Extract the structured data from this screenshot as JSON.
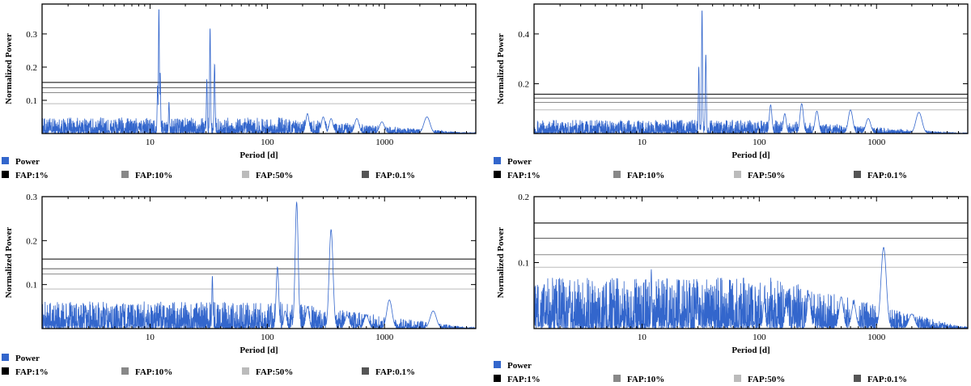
{
  "colors": {
    "power": "#3366cc",
    "fap_1": "#000000",
    "fap_10": "#888888",
    "fap_50": "#bbbbbb",
    "fap_01": "#555555"
  },
  "chart_data": [
    {
      "type": "line",
      "title": "",
      "xlabel": "Period [d]",
      "ylabel": "Normalized Power",
      "xscale": "log",
      "xlim": [
        1.2,
        6000
      ],
      "ylim": [
        0,
        0.39
      ],
      "xticks": [
        10,
        100,
        1000
      ],
      "xtick_labels": [
        "10",
        "100",
        "1000"
      ],
      "yticks": [
        0.1,
        0.2,
        0.3
      ],
      "ytick_labels": [
        "0.1",
        "0.2",
        "0.3"
      ],
      "fap_levels": {
        "fap_1": 0.154,
        "fap_10": 0.123,
        "fap_50": 0.09,
        "fap_01": 0.138
      },
      "noise_level": 0.022,
      "peaks": [
        {
          "x": 11.6,
          "y": 0.145
        },
        {
          "x": 11.9,
          "y": 0.38
        },
        {
          "x": 12.2,
          "y": 0.185
        },
        {
          "x": 14.5,
          "y": 0.095
        },
        {
          "x": 30.5,
          "y": 0.165
        },
        {
          "x": 32.5,
          "y": 0.32
        },
        {
          "x": 35.5,
          "y": 0.21
        },
        {
          "x": 220,
          "y": 0.06
        },
        {
          "x": 300,
          "y": 0.05
        },
        {
          "x": 350,
          "y": 0.045
        },
        {
          "x": 580,
          "y": 0.045
        },
        {
          "x": 950,
          "y": 0.035
        },
        {
          "x": 2300,
          "y": 0.05
        }
      ],
      "legend": [
        "Power",
        "FAP:1%",
        "FAP:10%",
        "FAP:50%",
        "FAP:0.1%"
      ]
    },
    {
      "type": "line",
      "title": "",
      "xlabel": "Period [d]",
      "ylabel": "Normalized Power",
      "xscale": "log",
      "xlim": [
        1.2,
        6000
      ],
      "ylim": [
        0,
        0.52
      ],
      "xticks": [
        10,
        100,
        1000
      ],
      "xtick_labels": [
        "10",
        "100",
        "1000"
      ],
      "yticks": [
        0.2,
        0.4
      ],
      "ytick_labels": [
        "0.2",
        "0.4"
      ],
      "fap_levels": {
        "fap_1": 0.158,
        "fap_10": 0.125,
        "fap_50": 0.095,
        "fap_01": 0.142
      },
      "noise_level": 0.025,
      "peaks": [
        {
          "x": 30.5,
          "y": 0.27
        },
        {
          "x": 32.5,
          "y": 0.5
        },
        {
          "x": 35,
          "y": 0.32
        },
        {
          "x": 125,
          "y": 0.115
        },
        {
          "x": 165,
          "y": 0.08
        },
        {
          "x": 230,
          "y": 0.12
        },
        {
          "x": 310,
          "y": 0.09
        },
        {
          "x": 600,
          "y": 0.095
        },
        {
          "x": 850,
          "y": 0.06
        },
        {
          "x": 2300,
          "y": 0.085
        }
      ],
      "legend": [
        "Power",
        "FAP:1%",
        "FAP:10%",
        "FAP:50%",
        "FAP:0.1%"
      ]
    },
    {
      "type": "line",
      "title": "",
      "xlabel": "Period [d]",
      "ylabel": "Normalized Power",
      "xscale": "log",
      "xlim": [
        1.2,
        6000
      ],
      "ylim": [
        0,
        0.3
      ],
      "xticks": [
        10,
        100,
        1000
      ],
      "xtick_labels": [
        "10",
        "100",
        "1000"
      ],
      "yticks": [
        0.1,
        0.2,
        0.3
      ],
      "ytick_labels": [
        "0.1",
        "0.2",
        "0.3"
      ],
      "fap_levels": {
        "fap_1": 0.158,
        "fap_10": 0.124,
        "fap_50": 0.09,
        "fap_01": 0.136
      },
      "noise_level": 0.028,
      "peaks": [
        {
          "x": 34,
          "y": 0.12
        },
        {
          "x": 122,
          "y": 0.14
        },
        {
          "x": 142,
          "y": 0.04
        },
        {
          "x": 178,
          "y": 0.287
        },
        {
          "x": 220,
          "y": 0.05
        },
        {
          "x": 350,
          "y": 0.225
        },
        {
          "x": 480,
          "y": 0.03
        },
        {
          "x": 700,
          "y": 0.03
        },
        {
          "x": 1100,
          "y": 0.065
        },
        {
          "x": 2600,
          "y": 0.04
        }
      ],
      "legend": [
        "Power",
        "FAP:1%",
        "FAP:10%",
        "FAP:50%",
        "FAP:0.1%"
      ]
    },
    {
      "type": "line",
      "title": "",
      "xlabel": "Period [d]",
      "ylabel": "Normalized Power",
      "xscale": "log",
      "xlim": [
        1.2,
        6000
      ],
      "ylim": [
        0,
        0.2
      ],
      "xticks": [
        10,
        100,
        1000
      ],
      "xtick_labels": [
        "10",
        "100",
        "1000"
      ],
      "yticks": [
        0.1,
        0.2
      ],
      "ytick_labels": [
        "0.1",
        "0.2"
      ],
      "fap_levels": {
        "fap_1": 0.16,
        "fap_10": 0.112,
        "fap_50": 0.093,
        "fap_01": 0.137
      },
      "noise_level": 0.035,
      "peaks": [
        {
          "x": 12,
          "y": 0.09
        },
        {
          "x": 110,
          "y": 0.04
        },
        {
          "x": 170,
          "y": 0.035
        },
        {
          "x": 265,
          "y": 0.052
        },
        {
          "x": 500,
          "y": 0.048
        },
        {
          "x": 640,
          "y": 0.038
        },
        {
          "x": 1150,
          "y": 0.123
        },
        {
          "x": 2000,
          "y": 0.022
        }
      ],
      "legend": [
        "Power",
        "FAP:1%",
        "FAP:10%",
        "FAP:50%",
        "FAP:0.1%"
      ]
    }
  ]
}
